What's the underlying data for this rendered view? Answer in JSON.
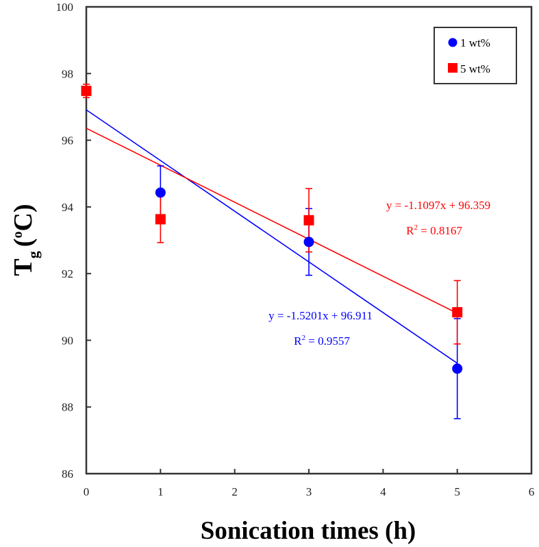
{
  "chart_data": {
    "type": "scatter",
    "title": "",
    "xlabel": "Sonication times (h)",
    "ylabel_main": "T",
    "ylabel_sub": "g",
    "ylabel_sup": "o",
    "ylabel_unit_open": "(",
    "ylabel_unit": "C)",
    "xlim": [
      0,
      6
    ],
    "ylim": [
      86,
      100
    ],
    "xticks": [
      "0",
      "1",
      "2",
      "3",
      "4",
      "5",
      "6"
    ],
    "yticks": [
      "86",
      "88",
      "90",
      "92",
      "94",
      "96",
      "98",
      "100"
    ],
    "grid": false,
    "legend_position": "top-right",
    "series": [
      {
        "name": "1 wt%",
        "color": "#0000ff",
        "marker": "circle",
        "x": [
          1,
          3,
          5
        ],
        "y": [
          94.43,
          92.95,
          89.15
        ],
        "error": [
          0.8,
          1.0,
          1.5
        ],
        "trendline": {
          "slope": -1.5201,
          "intercept": 96.911,
          "equation": "y = -1.5201x + 96.911",
          "r2_label": "R",
          "r2_sup": "2",
          "r2_value": " = 0.9557"
        }
      },
      {
        "name": "5 wt%",
        "color": "#ff0000",
        "marker": "square",
        "x": [
          0,
          1,
          3,
          5
        ],
        "y": [
          97.48,
          93.63,
          93.6,
          90.84
        ],
        "error": [
          0.2,
          0.7,
          0.95,
          0.95
        ],
        "trendline": {
          "slope": -1.1097,
          "intercept": 96.359,
          "equation": "y = -1.1097x + 96.359",
          "r2_label": "R",
          "r2_sup": "2",
          "r2_value": " = 0.8167"
        }
      }
    ]
  }
}
